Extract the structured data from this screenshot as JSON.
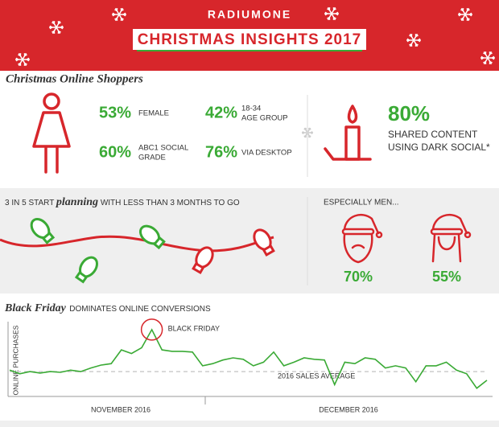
{
  "header": {
    "brand": "RADIUMONE",
    "title": "CHRISTMAS INSIGHTS 2017"
  },
  "shoppers": {
    "heading": "Christmas Online Shoppers",
    "stats": [
      {
        "value": "53%",
        "label": [
          "FEMALE"
        ]
      },
      {
        "value": "42%",
        "label": [
          "18-34",
          "AGE GROUP"
        ]
      },
      {
        "value": "60%",
        "label": [
          "ABC1 SOCIAL",
          "GRADE"
        ]
      },
      {
        "value": "76%",
        "label": [
          "VIA DESKTOP"
        ]
      }
    ],
    "highlight": {
      "value": "80%",
      "label": [
        "SHARED CONTENT",
        "USING DARK SOCIAL*"
      ]
    }
  },
  "planning": {
    "text_before": "3 IN 5 START",
    "emphasis": "planning",
    "text_after": "WITH LESS THAN 3 MONTHS TO GO",
    "heading": "ESPECIALLY MEN...",
    "men": "70%",
    "women": "55%"
  },
  "chart_data": {
    "type": "line",
    "title": "Black Friday",
    "subtitle": "DOMINATES ONLINE CONVERSIONS",
    "y_label": "ONLINE PURCHASES",
    "x_labels": [
      "NOVEMBER 2016",
      "DECEMBER 2016"
    ],
    "annotation": "BLACK FRIDAY",
    "average_label": "2016 SALES AVERAGE",
    "average": 31,
    "color": "#3aaa35",
    "ylim": [
      0,
      100
    ],
    "values": [
      33,
      28,
      31,
      29,
      31,
      30,
      33,
      31,
      36,
      40,
      42,
      61,
      56,
      64,
      89,
      61,
      59,
      59,
      58,
      39,
      42,
      47,
      50,
      48,
      39,
      44,
      58,
      39,
      44,
      50,
      48,
      47,
      13,
      44,
      42,
      50,
      48,
      36,
      39,
      36,
      17,
      39,
      39,
      44,
      33,
      28,
      8,
      19
    ]
  }
}
